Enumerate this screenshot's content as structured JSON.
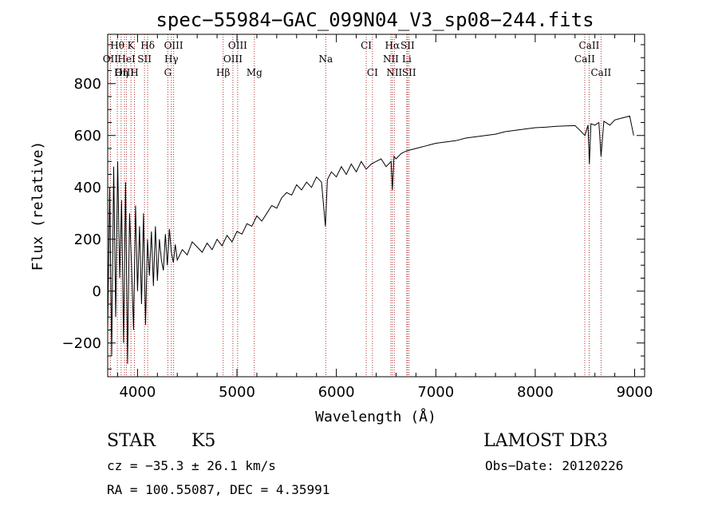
{
  "chart_data": {
    "type": "line",
    "title": "spec−55984−GAC_099N04_V3_sp08−244.fits",
    "xlabel": "Wavelength (Å)",
    "ylabel": "Flux (relative)",
    "xlim": [
      3700,
      9100
    ],
    "ylim": [
      -330,
      990
    ],
    "xticks": [
      4000,
      5000,
      6000,
      7000,
      8000,
      9000
    ],
    "xtick_labels": [
      "4000",
      "5000",
      "6000",
      "7000",
      "8000",
      "9000"
    ],
    "yticks": [
      -200,
      0,
      200,
      400,
      600,
      800
    ],
    "ytick_labels": [
      "−200",
      "0",
      "200",
      "400",
      "600",
      "800"
    ],
    "series": [
      {
        "name": "spectrum",
        "x": [
          3700,
          3720,
          3740,
          3760,
          3780,
          3800,
          3820,
          3840,
          3860,
          3880,
          3900,
          3920,
          3940,
          3960,
          3980,
          4000,
          4020,
          4040,
          4060,
          4080,
          4100,
          4120,
          4140,
          4160,
          4180,
          4200,
          4220,
          4240,
          4260,
          4280,
          4300,
          4320,
          4340,
          4360,
          4380,
          4400,
          4450,
          4500,
          4550,
          4600,
          4650,
          4700,
          4750,
          4800,
          4850,
          4900,
          4950,
          5000,
          5050,
          5100,
          5150,
          5200,
          5250,
          5300,
          5350,
          5400,
          5450,
          5500,
          5550,
          5600,
          5650,
          5700,
          5750,
          5800,
          5850,
          5890,
          5910,
          5950,
          6000,
          6050,
          6100,
          6150,
          6200,
          6250,
          6300,
          6350,
          6400,
          6450,
          6500,
          6550,
          6563,
          6580,
          6600,
          6650,
          6700,
          6750,
          6800,
          6850,
          6900,
          6950,
          7000,
          7100,
          7200,
          7300,
          7400,
          7500,
          7600,
          7700,
          7800,
          7900,
          8000,
          8100,
          8200,
          8300,
          8400,
          8450,
          8500,
          8530,
          8545,
          8560,
          8600,
          8640,
          8662,
          8690,
          8750,
          8800,
          8850,
          8900,
          8950,
          8990
        ],
        "y": [
          -150,
          400,
          -250,
          480,
          -100,
          500,
          50,
          350,
          -200,
          420,
          -280,
          300,
          100,
          -150,
          330,
          0,
          250,
          -50,
          300,
          -130,
          200,
          60,
          230,
          20,
          250,
          40,
          200,
          120,
          80,
          220,
          100,
          240,
          150,
          110,
          180,
          120,
          160,
          140,
          190,
          170,
          150,
          185,
          160,
          200,
          175,
          215,
          190,
          230,
          220,
          260,
          250,
          290,
          270,
          300,
          330,
          320,
          360,
          380,
          370,
          410,
          390,
          420,
          400,
          440,
          420,
          250,
          430,
          460,
          440,
          480,
          450,
          490,
          460,
          500,
          470,
          490,
          500,
          510,
          480,
          500,
          390,
          520,
          510,
          530,
          540,
          545,
          550,
          555,
          560,
          565,
          570,
          575,
          580,
          590,
          595,
          600,
          605,
          615,
          620,
          625,
          630,
          632,
          635,
          637,
          638,
          620,
          600,
          640,
          490,
          645,
          640,
          650,
          520,
          655,
          640,
          660,
          665,
          670,
          675,
          600
        ]
      }
    ],
    "spectral_lines": [
      {
        "label": "Hθ",
        "wavelength": 3797,
        "row": 0
      },
      {
        "label": "K",
        "wavelength": 3934,
        "row": 0
      },
      {
        "label": "Hδ",
        "wavelength": 4102,
        "row": 0
      },
      {
        "label": "OIII",
        "wavelength": 4363,
        "row": 0
      },
      {
        "label": "OIII",
        "wavelength": 5007,
        "row": 0
      },
      {
        "label": "CI",
        "wavelength": 6300,
        "row": 0
      },
      {
        "label": "Hα",
        "wavelength": 6563,
        "row": 0
      },
      {
        "label": "SII",
        "wavelength": 6716,
        "row": 0
      },
      {
        "label": "CaII",
        "wavelength": 8542,
        "row": 0
      },
      {
        "label": "OII",
        "wavelength": 3727,
        "row": 1
      },
      {
        "label": "HeI",
        "wavelength": 3889,
        "row": 1
      },
      {
        "label": "SII",
        "wavelength": 4070,
        "row": 1
      },
      {
        "label": "Hγ",
        "wavelength": 4340,
        "row": 1
      },
      {
        "label": "OIII",
        "wavelength": 4959,
        "row": 1
      },
      {
        "label": "Na",
        "wavelength": 5893,
        "row": 1
      },
      {
        "label": "NII",
        "wavelength": 6548,
        "row": 1
      },
      {
        "label": "Li",
        "wavelength": 6708,
        "row": 1
      },
      {
        "label": "CaII",
        "wavelength": 8498,
        "row": 1
      },
      {
        "label": "OIII",
        "wavelength": 3869,
        "row": 2
      },
      {
        "label": "Hη",
        "wavelength": 3835,
        "row": 2
      },
      {
        "label": "H",
        "wavelength": 3969,
        "row": 2
      },
      {
        "label": "G",
        "wavelength": 4305,
        "row": 2
      },
      {
        "label": "Hβ",
        "wavelength": 4861,
        "row": 2
      },
      {
        "label": "Mg",
        "wavelength": 5175,
        "row": 2
      },
      {
        "label": "CI",
        "wavelength": 6363,
        "row": 2
      },
      {
        "label": "NII",
        "wavelength": 6583,
        "row": 2
      },
      {
        "label": "SII",
        "wavelength": 6731,
        "row": 2
      },
      {
        "label": "CaII",
        "wavelength": 8662,
        "row": 2
      }
    ]
  },
  "info": {
    "object_class": "STAR",
    "subclass": "K5",
    "survey": "LAMOST DR3",
    "redshift": "cz = −35.3 ± 26.1 km/s",
    "obs_date": "Obs−Date: 20120226",
    "coords": "RA = 100.55087, DEC =   4.35991"
  },
  "colors": {
    "spectrum": "#000000",
    "line_marker": "#b03030",
    "axes": "#000000"
  }
}
